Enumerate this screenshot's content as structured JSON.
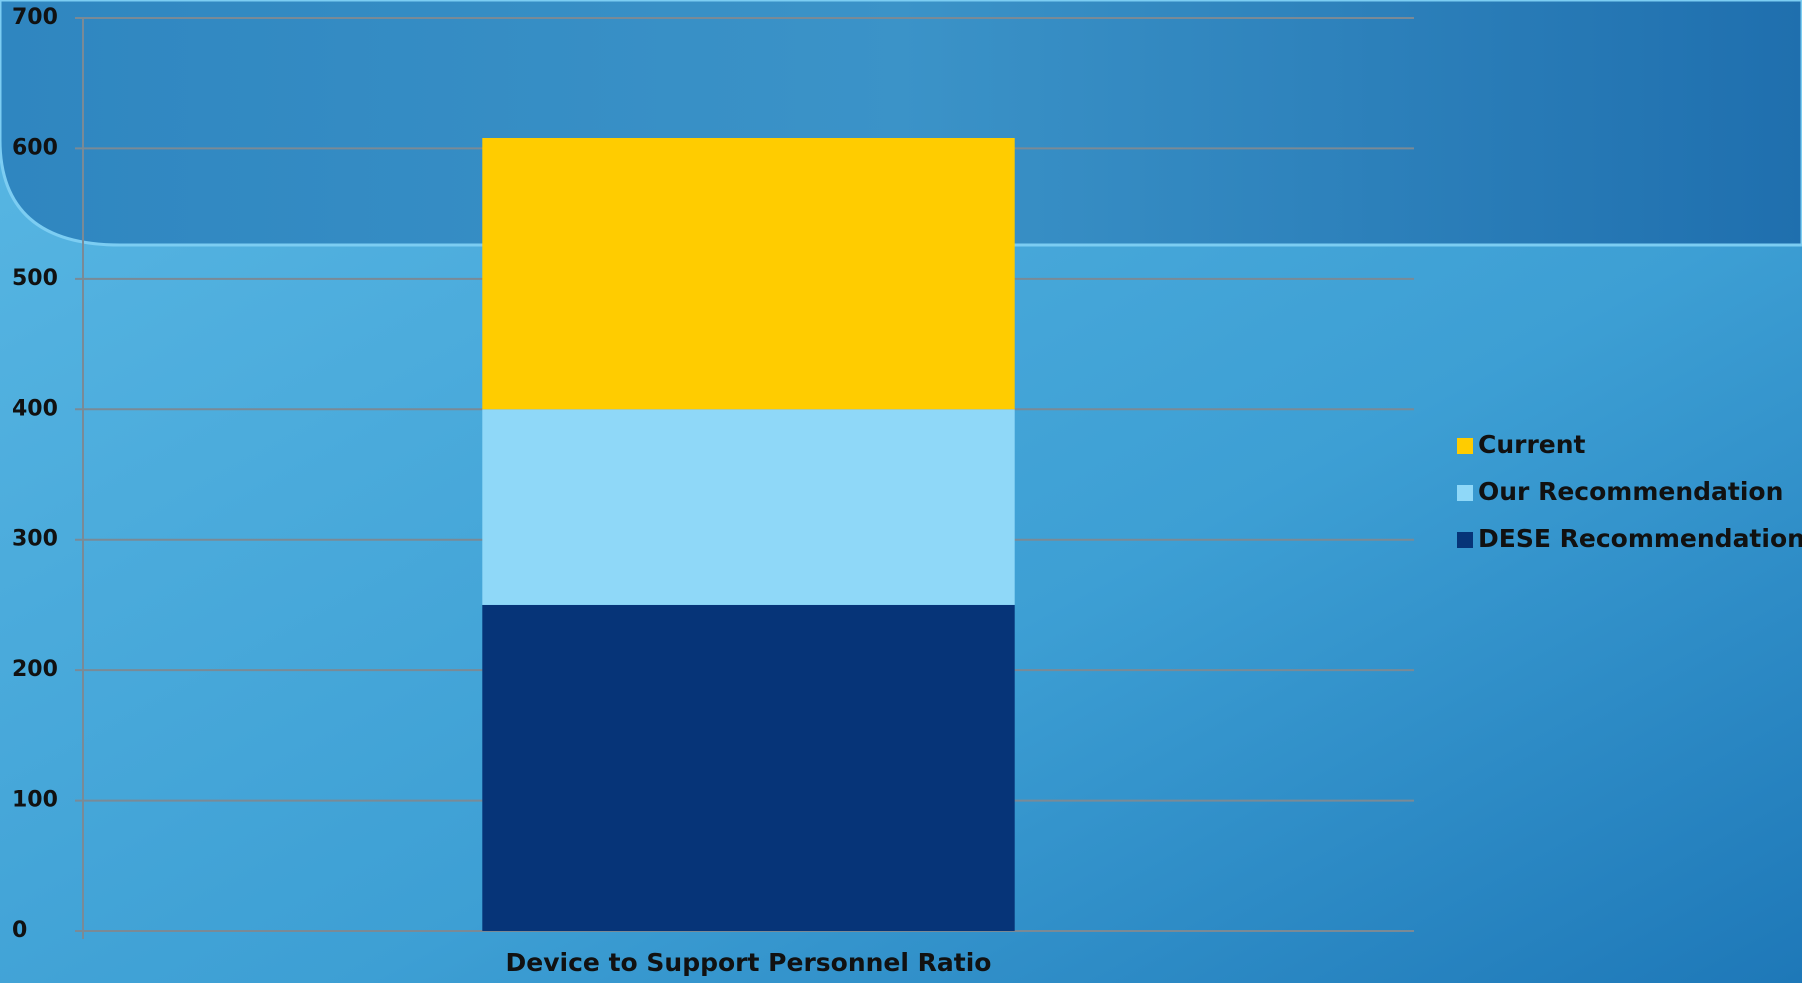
{
  "chart_data": {
    "type": "stacked_bar",
    "categories": [
      "Device to Support Personnel Ratio"
    ],
    "series": [
      {
        "name": "Current",
        "color": "#ffcc00",
        "values": [
          208
        ]
      },
      {
        "name": "Our Recommendation",
        "color": "#8fd8f8",
        "values": [
          150
        ]
      },
      {
        "name": "DESE Recommendation",
        "color": "#063478",
        "values": [
          250
        ]
      }
    ],
    "ylim": [
      0,
      700
    ],
    "yticks": [
      0,
      100,
      200,
      300,
      400,
      500,
      600,
      700
    ],
    "grid": true,
    "legend": "right"
  }
}
